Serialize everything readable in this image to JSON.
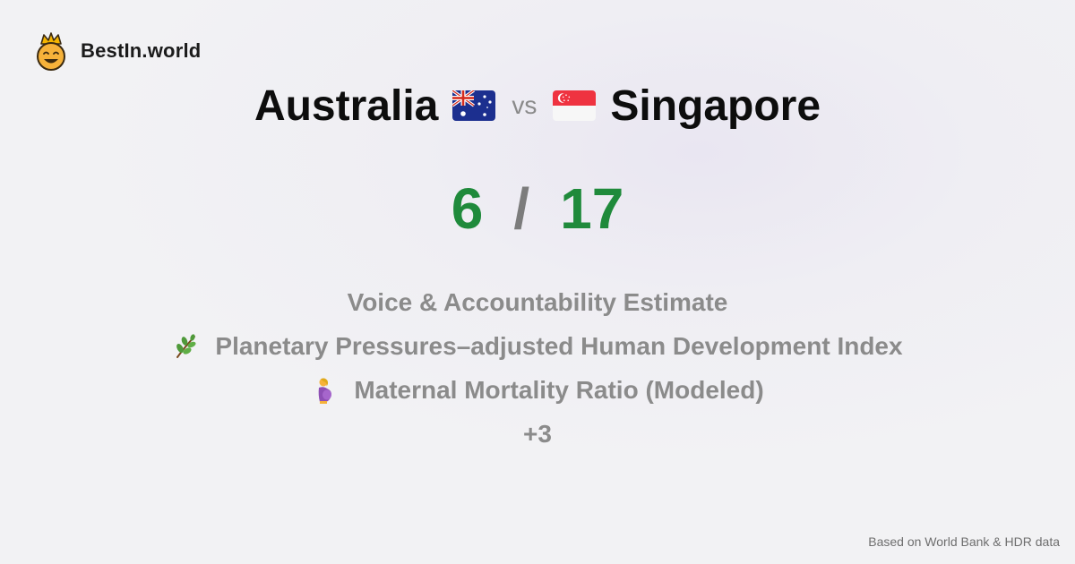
{
  "brand": {
    "name": "BestIn.world",
    "logo_icon": "crown-smiley-icon"
  },
  "comparison": {
    "left_country": "Australia",
    "left_flag": "australia-flag-icon",
    "vs_label": "vs",
    "right_country": "Singapore",
    "right_flag": "singapore-flag-icon"
  },
  "score": {
    "left": "6",
    "separator": "/",
    "right": "17",
    "color": "#1f8a3b"
  },
  "metrics": [
    {
      "label": "Voice & Accountability Estimate",
      "icon": ""
    },
    {
      "label": "Planetary Pressures–adjusted Human Development Index",
      "icon": "herb-icon"
    },
    {
      "label": "Maternal Mortality Ratio (Modeled)",
      "icon": "pregnant-woman-icon"
    },
    {
      "label": "+3",
      "icon": ""
    }
  ],
  "source": "Based on World Bank & HDR data"
}
